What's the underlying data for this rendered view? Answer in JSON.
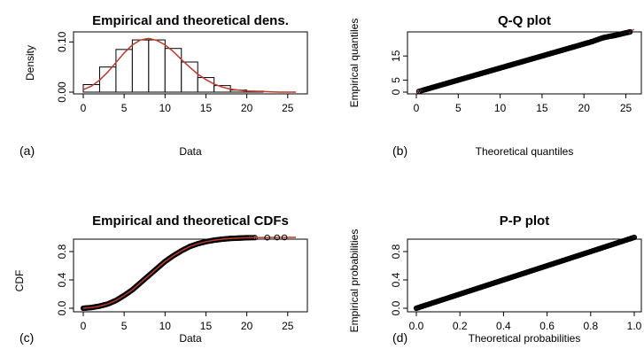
{
  "chart_data": [
    {
      "type": "bar",
      "panel": "(a)",
      "title": "Empirical and theoretical dens.",
      "xlabel": "Data",
      "ylabel": "Density",
      "xlim": [
        0,
        26
      ],
      "ylim": [
        0,
        0.12
      ],
      "xticks": [
        "0",
        "5",
        "10",
        "15",
        "20",
        "25"
      ],
      "yticks": [
        "0.00",
        "0.10"
      ],
      "bins": [
        [
          0,
          2
        ],
        [
          2,
          4
        ],
        [
          4,
          6
        ],
        [
          6,
          8
        ],
        [
          8,
          10
        ],
        [
          10,
          12
        ],
        [
          12,
          14
        ],
        [
          14,
          16
        ],
        [
          16,
          18
        ],
        [
          18,
          20
        ],
        [
          20,
          22
        ]
      ],
      "values": [
        0.015,
        0.05,
        0.085,
        0.104,
        0.104,
        0.087,
        0.06,
        0.029,
        0.013,
        0.004,
        0.002
      ],
      "curve": {
        "x": [
          0,
          1,
          2,
          3,
          4,
          5,
          6,
          7,
          8,
          9,
          10,
          11,
          12,
          13,
          14,
          15,
          16,
          17,
          18,
          19,
          20,
          22,
          24,
          26
        ],
        "y": [
          0.005,
          0.012,
          0.024,
          0.04,
          0.059,
          0.078,
          0.094,
          0.104,
          0.107,
          0.103,
          0.094,
          0.081,
          0.065,
          0.05,
          0.036,
          0.025,
          0.016,
          0.01,
          0.006,
          0.004,
          0.002,
          0.001,
          0.0,
          0.0
        ],
        "color": "#c0392b"
      }
    },
    {
      "type": "scatter",
      "panel": "(b)",
      "title": "Q-Q plot",
      "xlabel": "Theoretical quantiles",
      "ylabel": "Empirical quantiles",
      "xlim": [
        0,
        26
      ],
      "ylim": [
        0,
        25
      ],
      "xticks": [
        "0",
        "5",
        "10",
        "15",
        "20",
        "25"
      ],
      "yticks": [
        "0",
        "5",
        "15"
      ],
      "points": {
        "x": [
          0.3,
          1,
          2,
          3,
          4,
          5,
          6,
          7,
          8,
          9,
          10,
          11,
          12,
          13,
          14,
          15,
          16,
          17,
          18,
          19,
          19.5,
          20,
          20.3,
          20.6,
          21,
          22.2,
          23,
          23.8,
          25.5
        ],
        "y": [
          0.3,
          1,
          2,
          3,
          4,
          5,
          6,
          7,
          8,
          9,
          10,
          11,
          12,
          13,
          14,
          15,
          16,
          17,
          18,
          19,
          19.5,
          20,
          20.3,
          20.6,
          21,
          22.5,
          23.1,
          23.6,
          25
        ]
      },
      "reference_line": {
        "from": [
          0,
          0
        ],
        "to": [
          26,
          26
        ],
        "color": "#c0392b"
      }
    },
    {
      "type": "line",
      "panel": "(c)",
      "title": "Empirical and theoretical CDFs",
      "xlabel": "Data",
      "ylabel": "CDF",
      "xlim": [
        0,
        26
      ],
      "ylim": [
        0,
        1
      ],
      "xticks": [
        "0",
        "5",
        "10",
        "15",
        "20",
        "25"
      ],
      "yticks": [
        "0.0",
        "0.4",
        "0.8"
      ],
      "curve": {
        "x": [
          0,
          1,
          2,
          3,
          4,
          5,
          6,
          7,
          8,
          9,
          10,
          11,
          12,
          13,
          14,
          15,
          16,
          17,
          18,
          19,
          20,
          22,
          24,
          26
        ],
        "y": [
          0.0,
          0.01,
          0.03,
          0.06,
          0.11,
          0.18,
          0.26,
          0.36,
          0.46,
          0.56,
          0.66,
          0.74,
          0.81,
          0.87,
          0.91,
          0.94,
          0.96,
          0.975,
          0.985,
          0.99,
          0.995,
          0.998,
          1.0,
          1.0
        ],
        "color": "#c0392b"
      },
      "outliers": {
        "x": [
          22.5,
          23.7,
          24.6
        ],
        "y": [
          0.998,
          0.999,
          1.0
        ]
      }
    },
    {
      "type": "scatter",
      "panel": "(d)",
      "title": "P-P plot",
      "xlabel": "Theoretical probabilities",
      "ylabel": "Empirical probabilities",
      "xlim": [
        0,
        1
      ],
      "ylim": [
        0,
        1
      ],
      "xticks": [
        "0.0",
        "0.2",
        "0.4",
        "0.6",
        "0.8",
        "1.0"
      ],
      "yticks": [
        "0.0",
        "0.4",
        "0.8"
      ],
      "points": {
        "x": [
          0.0,
          0.05,
          0.1,
          0.15,
          0.2,
          0.25,
          0.3,
          0.35,
          0.4,
          0.45,
          0.5,
          0.55,
          0.6,
          0.65,
          0.7,
          0.75,
          0.8,
          0.85,
          0.9,
          0.95,
          1.0
        ],
        "y": [
          0.0,
          0.05,
          0.1,
          0.15,
          0.2,
          0.25,
          0.3,
          0.35,
          0.4,
          0.45,
          0.5,
          0.55,
          0.6,
          0.65,
          0.7,
          0.75,
          0.8,
          0.85,
          0.9,
          0.95,
          1.0
        ]
      },
      "reference_line": {
        "from": [
          0,
          0
        ],
        "to": [
          1,
          1
        ],
        "color": "#c0392b"
      }
    }
  ]
}
